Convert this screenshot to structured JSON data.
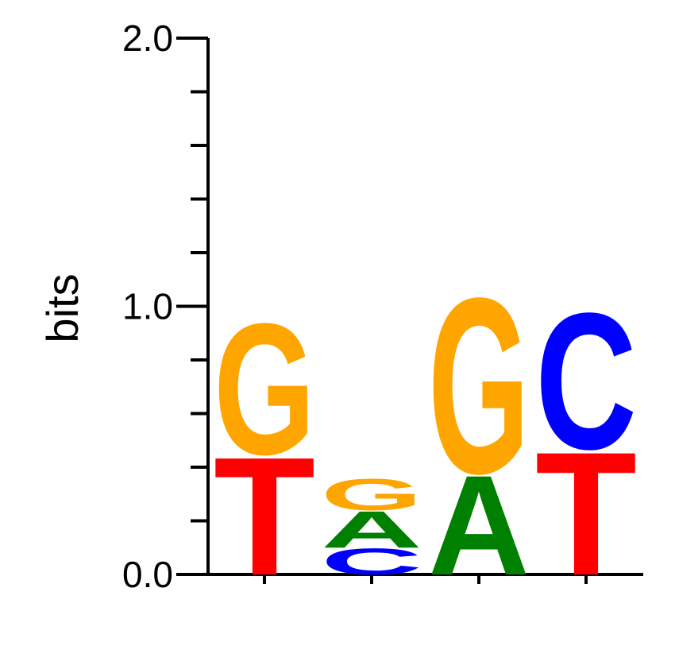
{
  "chart_data": {
    "type": "sequence-logo",
    "ylabel": "bits",
    "ylim": [
      0,
      2
    ],
    "yticks": [
      {
        "value": 0.0,
        "label": "0.0"
      },
      {
        "value": 1.0,
        "label": "1.0"
      },
      {
        "value": 2.0,
        "label": "2.0"
      }
    ],
    "minor_tick_step": 0.2,
    "colors": {
      "A": "#008000",
      "C": "#0000ff",
      "G": "#ffa500",
      "T": "#ff0000"
    },
    "positions": [
      {
        "stack": [
          {
            "letter": "T",
            "bits": 0.45
          },
          {
            "letter": "G",
            "bits": 0.5
          }
        ]
      },
      {
        "stack": [
          {
            "letter": "C",
            "bits": 0.1
          },
          {
            "letter": "A",
            "bits": 0.14
          },
          {
            "letter": "G",
            "bits": 0.12
          }
        ]
      },
      {
        "stack": [
          {
            "letter": "A",
            "bits": 0.38
          },
          {
            "letter": "G",
            "bits": 0.67
          }
        ]
      },
      {
        "stack": [
          {
            "letter": "T",
            "bits": 0.47
          },
          {
            "letter": "C",
            "bits": 0.52
          }
        ]
      }
    ]
  }
}
